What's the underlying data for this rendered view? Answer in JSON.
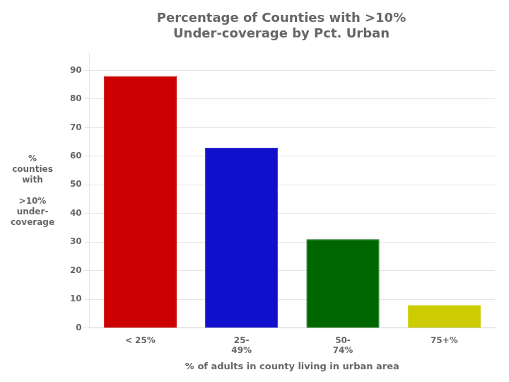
{
  "chart_data": {
    "type": "bar",
    "title": "Percentage of Counties with >10%\nUnder-coverage by Pct. Urban",
    "categories": [
      "< 25%",
      "25-\n49%",
      "50-\n74%",
      "75+%"
    ],
    "values": [
      88,
      63,
      31,
      8
    ],
    "colors": [
      "#cc0000",
      "#1010cc",
      "#006600",
      "#cccc00"
    ],
    "x_label": "% of adults in county living in urban area",
    "y_label": "%\ncounties\nwith\n\n>10%\nunder-\ncoverage",
    "ylim": [
      0,
      96
    ],
    "yticks": [
      0,
      10,
      20,
      30,
      40,
      50,
      60,
      70,
      80,
      90
    ],
    "grid": true
  }
}
